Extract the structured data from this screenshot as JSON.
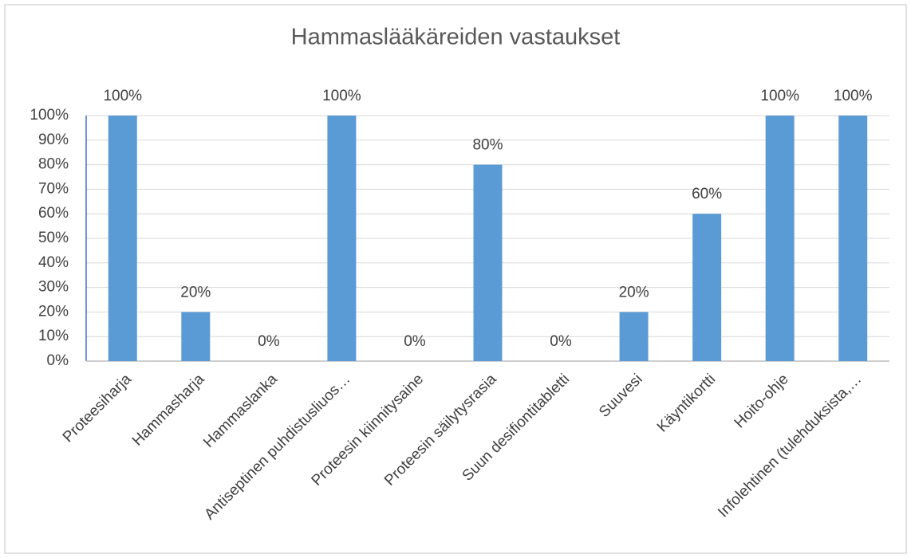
{
  "chart_data": {
    "type": "bar",
    "title": "Hammaslääkäreiden vastaukset",
    "categories": [
      "Proteesiharja",
      "Hammasharja",
      "Hammaslanka",
      "Antiseptinen puhdistusliuos…",
      "Proteesin kiinnitysaine",
      "Proteesin säilytysrasia",
      "Suun desifiontitabletti",
      "Suuvesi",
      "Käyntikortti",
      "Hoito-ohje",
      "Infolehtinen (tulehduksista,…"
    ],
    "values": [
      100,
      20,
      0,
      100,
      0,
      80,
      0,
      20,
      60,
      100,
      100
    ],
    "value_labels": [
      "100%",
      "20%",
      "0%",
      "100%",
      "0%",
      "80%",
      "0%",
      "20%",
      "60%",
      "100%",
      "100%"
    ],
    "color": "#5b9bd5",
    "ylim": [
      0,
      100
    ],
    "yticks": [
      {
        "value": 0,
        "label": "0%"
      },
      {
        "value": 10,
        "label": "10%"
      },
      {
        "value": 20,
        "label": "20%"
      },
      {
        "value": 30,
        "label": "30%"
      },
      {
        "value": 40,
        "label": "40%"
      },
      {
        "value": 50,
        "label": "50%"
      },
      {
        "value": 60,
        "label": "60%"
      },
      {
        "value": 70,
        "label": "70%"
      },
      {
        "value": 80,
        "label": "80%"
      },
      {
        "value": 90,
        "label": "90%"
      },
      {
        "value": 100,
        "label": "100%"
      }
    ],
    "grid": true
  }
}
